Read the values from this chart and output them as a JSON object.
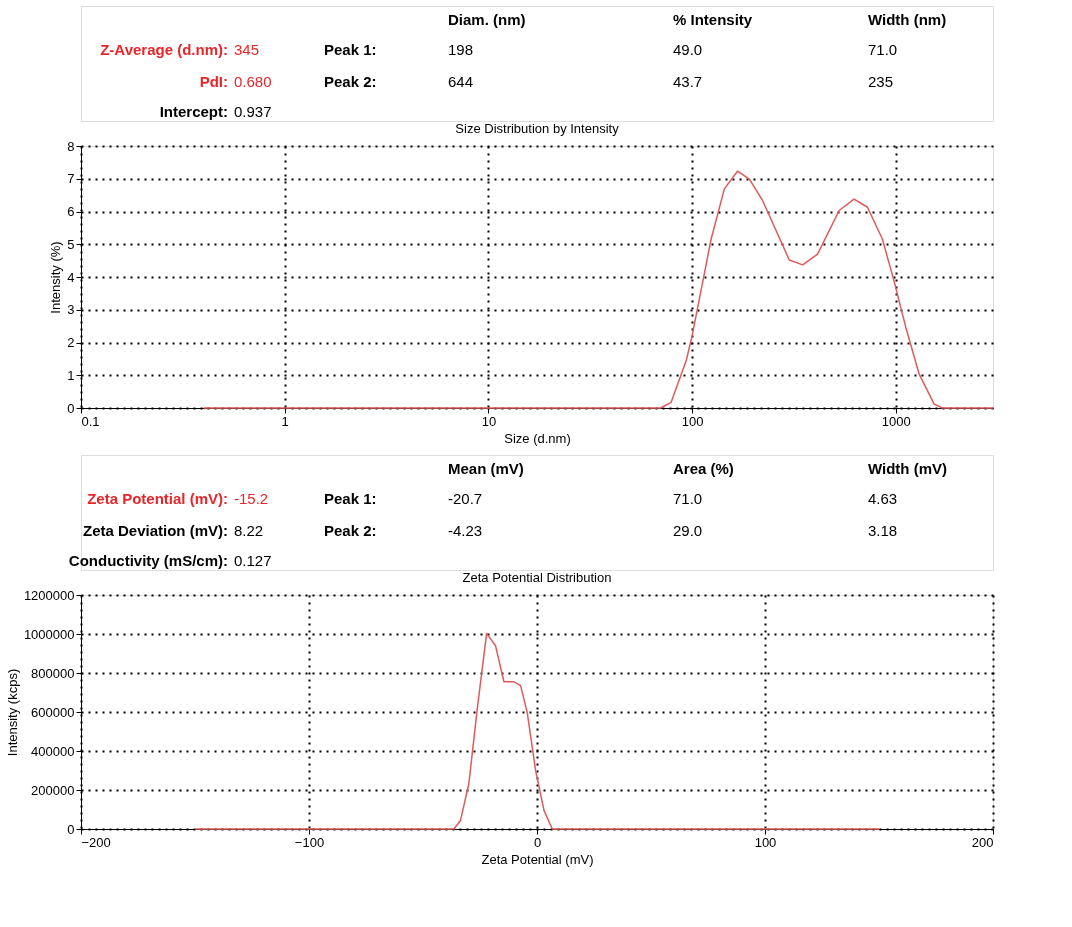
{
  "chart_data": [
    {
      "type": "line",
      "title": "Size Distribution by Intensity",
      "xlabel": "Size (d.nm)",
      "ylabel": "Intensity (%)",
      "log": "x",
      "grid": true,
      "xlim": [
        0.1,
        3000
      ],
      "ylim": [
        0,
        8
      ],
      "xticks": [
        0.1,
        1,
        10,
        100,
        1000
      ],
      "yticks": [
        0,
        1,
        2,
        3,
        4,
        5,
        6,
        7,
        8
      ],
      "x": [
        0.4,
        70,
        78.8,
        93.5,
        100,
        124,
        144,
        167,
        191,
        222,
        300,
        349,
        413,
        527,
        624,
        726,
        859,
        979,
        1120,
        1301,
        1542,
        1694,
        3000
      ],
      "series": [
        {
          "color": "#e05a5a",
          "values": [
            0,
            0,
            0.17,
            1.44,
            2.2,
            5.16,
            6.69,
            7.23,
            6.99,
            6.33,
            4.52,
            4.37,
            4.7,
            6.03,
            6.38,
            6.13,
            5.16,
            3.89,
            2.46,
            1.04,
            0.12,
            0,
            0
          ]
        }
      ],
      "annotations": [
        "Diam. (nm)",
        "% Intensity",
        "Width (nm)",
        "Z-Average (d.nm):",
        "345",
        "Peak 1:",
        "198",
        "49.0",
        "71.0",
        "PdI:",
        "0.680",
        "Peak 2:",
        "644",
        "43.7",
        "235",
        "Intercept:",
        "0.937"
      ]
    },
    {
      "type": "line",
      "title": "Zeta Potential Distribution",
      "xlabel": "Zeta Potential (mV)",
      "ylabel": "Intensity (kcps)",
      "grid": true,
      "xlim": [
        -200,
        200
      ],
      "ylim": [
        0,
        1200000
      ],
      "xticks": [
        -200,
        -100,
        0,
        100,
        200
      ],
      "yticks": [
        0,
        200000,
        400000,
        600000,
        800000,
        1000000,
        1200000
      ],
      "x": [
        -150,
        -36.5,
        -33.6,
        -29.9,
        -26.3,
        -22.1,
        -18.2,
        -14.5,
        -10.1,
        -7.2,
        -4.3,
        -0.6,
        3.1,
        6.7,
        150
      ],
      "series": [
        {
          "color": "#e05a5a",
          "values": [
            0,
            0,
            42600,
            230800,
            606700,
            1003000,
            940000,
            755000,
            755000,
            735000,
            598000,
            299000,
            94000,
            0,
            0
          ]
        }
      ],
      "annotations": [
        "Mean (mV)",
        "Area (%)",
        "Width (mV)",
        "Zeta Potential (mV):",
        "-15.2",
        "Peak 1:",
        "-20.7",
        "71.0",
        "4.63",
        "Zeta Deviation (mV):",
        "8.22",
        "Peak 2:",
        "-4.23",
        "29.0",
        "3.18",
        "Conductivity (mS/cm):",
        "0.127"
      ]
    }
  ]
}
